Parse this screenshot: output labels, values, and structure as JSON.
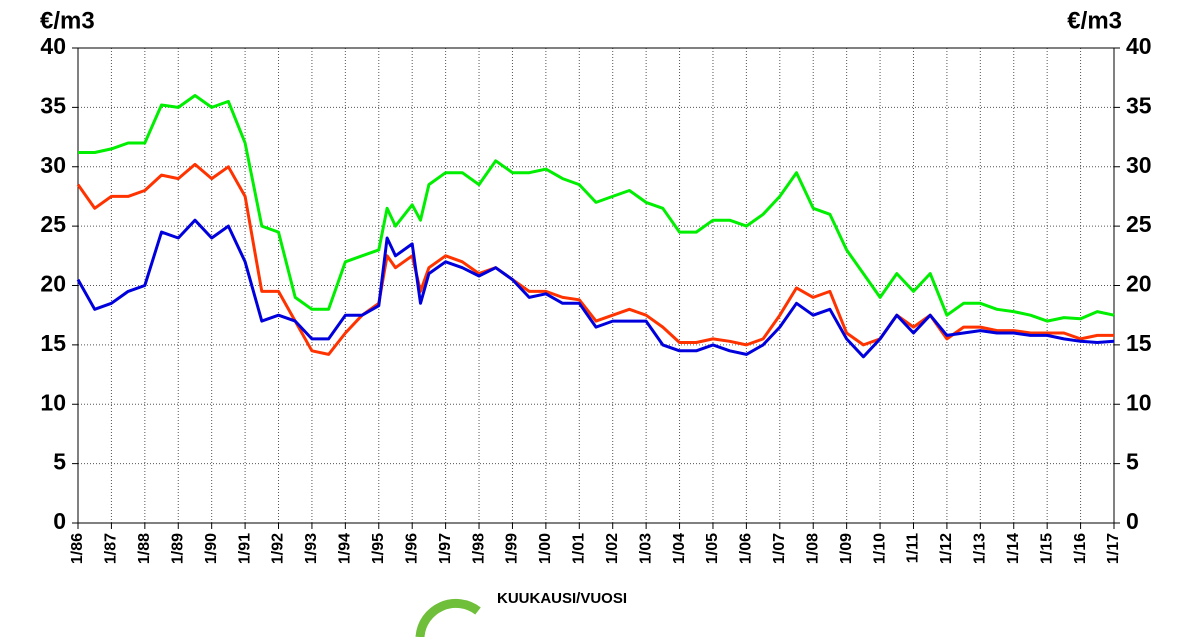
{
  "chart_data": {
    "type": "line",
    "y_axis_label": "€/m3",
    "y2_axis_label": "€/m3",
    "x_axis_label": "KUUKAUSI/VUOSI",
    "x": [
      1986,
      1986.5,
      1987,
      1987.5,
      1988,
      1988.5,
      1989,
      1989.5,
      1990,
      1990.5,
      1991,
      1991.5,
      1992,
      1992.5,
      1993,
      1993.5,
      1994,
      1994.5,
      1995,
      1995.25,
      1995.5,
      1996,
      1996.25,
      1996.5,
      1997,
      1997.5,
      1998,
      1998.5,
      1999,
      1999.5,
      2000,
      2000.5,
      2001,
      2001.5,
      2002,
      2002.5,
      2003,
      2003.5,
      2004,
      2004.5,
      2005,
      2005.5,
      2006,
      2006.5,
      2007,
      2007.5,
      2008,
      2008.5,
      2009,
      2009.5,
      2010,
      2010.5,
      2011,
      2011.5,
      2012,
      2012.5,
      2013,
      2013.5,
      2014,
      2014.5,
      2015,
      2015.5,
      2016,
      2016.5,
      2017
    ],
    "series": [
      {
        "color": "#00ee00",
        "values": [
          31.2,
          31.2,
          31.5,
          32,
          32,
          35.2,
          35,
          36,
          35,
          35.5,
          32,
          25,
          24.5,
          19,
          18,
          18,
          22,
          22.5,
          23,
          26.5,
          25,
          26.8,
          25.5,
          28.5,
          29.5,
          29.5,
          28.5,
          30.5,
          29.5,
          29.5,
          29.8,
          29,
          28.5,
          27,
          27.5,
          28,
          27,
          26.5,
          24.5,
          24.5,
          25.5,
          25.5,
          25,
          26,
          27.5,
          29.5,
          26.5,
          26,
          23,
          21,
          19,
          21,
          19.5,
          21,
          17.5,
          18.5,
          18.5,
          18,
          17.8,
          17.5,
          17,
          17.3,
          17.2,
          17.8,
          17.5
        ]
      },
      {
        "color": "#ff3300",
        "values": [
          28.5,
          26.5,
          27.5,
          27.5,
          28,
          29.3,
          29,
          30.2,
          29,
          30,
          27.5,
          19.5,
          19.5,
          17,
          14.5,
          14.2,
          16,
          17.5,
          18.5,
          22.5,
          21.5,
          22.5,
          19.5,
          21.5,
          22.5,
          22,
          21,
          21.5,
          20.5,
          19.5,
          19.5,
          19,
          18.8,
          17,
          17.5,
          18,
          17.5,
          16.5,
          15.2,
          15.2,
          15.5,
          15.3,
          15,
          15.5,
          17.5,
          19.8,
          19,
          19.5,
          16,
          15,
          15.5,
          17.5,
          16.5,
          17.5,
          15.5,
          16.5,
          16.5,
          16.2,
          16.2,
          16,
          16,
          16,
          15.5,
          15.8,
          15.8
        ]
      },
      {
        "color": "#0000dd",
        "values": [
          20.5,
          18,
          18.5,
          19.5,
          20,
          24.5,
          24,
          25.5,
          24,
          25,
          22,
          17,
          17.5,
          17,
          15.5,
          15.5,
          17.5,
          17.5,
          18.3,
          24,
          22.5,
          23.5,
          18.5,
          21,
          22,
          21.5,
          20.8,
          21.5,
          20.5,
          19,
          19.3,
          18.5,
          18.5,
          16.5,
          17,
          17,
          17,
          15,
          14.5,
          14.5,
          15,
          14.5,
          14.2,
          15,
          16.5,
          18.5,
          17.5,
          18,
          15.5,
          14,
          15.5,
          17.5,
          16,
          17.5,
          15.8,
          16,
          16.2,
          16,
          16,
          15.8,
          15.8,
          15.5,
          15.3,
          15.2,
          15.3
        ]
      }
    ],
    "xlim": [
      1986,
      2017
    ],
    "xticks": [
      {
        "value": 1986,
        "label": "1/86"
      },
      {
        "value": 1987,
        "label": "1/87"
      },
      {
        "value": 1988,
        "label": "1/88"
      },
      {
        "value": 1989,
        "label": "1/89"
      },
      {
        "value": 1990,
        "label": "1/90"
      },
      {
        "value": 1991,
        "label": "1/91"
      },
      {
        "value": 1992,
        "label": "1/92"
      },
      {
        "value": 1993,
        "label": "1/93"
      },
      {
        "value": 1994,
        "label": "1/94"
      },
      {
        "value": 1995,
        "label": "1/95"
      },
      {
        "value": 1996,
        "label": "1/96"
      },
      {
        "value": 1997,
        "label": "1/97"
      },
      {
        "value": 1998,
        "label": "1/98"
      },
      {
        "value": 1999,
        "label": "1/99"
      },
      {
        "value": 2000,
        "label": "1/00"
      },
      {
        "value": 2001,
        "label": "1/01"
      },
      {
        "value": 2002,
        "label": "1/02"
      },
      {
        "value": 2003,
        "label": "1/03"
      },
      {
        "value": 2004,
        "label": "1/04"
      },
      {
        "value": 2005,
        "label": "1/05"
      },
      {
        "value": 2006,
        "label": "1/06"
      },
      {
        "value": 2007,
        "label": "1/07"
      },
      {
        "value": 2008,
        "label": "1/08"
      },
      {
        "value": 2009,
        "label": "1/09"
      },
      {
        "value": 2010,
        "label": "1/10"
      },
      {
        "value": 2011,
        "label": "1/11"
      },
      {
        "value": 2012,
        "label": "1/12"
      },
      {
        "value": 2013,
        "label": "1/13"
      },
      {
        "value": 2014,
        "label": "1/14"
      },
      {
        "value": 2015,
        "label": "1/15"
      },
      {
        "value": 2016,
        "label": "1/16"
      },
      {
        "value": 2017,
        "label": "1/17"
      }
    ],
    "ylim": [
      0,
      40
    ],
    "yticks": [
      0,
      5,
      10,
      15,
      20,
      25,
      30,
      35,
      40
    ],
    "y2lim": [
      0,
      40
    ],
    "y2ticks": [
      0,
      5,
      10,
      15,
      20,
      25,
      30,
      35,
      40
    ],
    "grid": true
  }
}
